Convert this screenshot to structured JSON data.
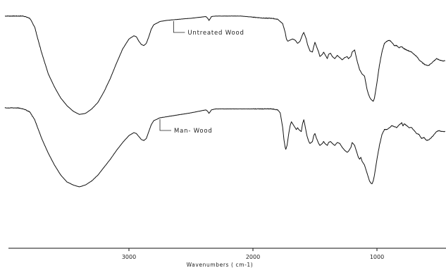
{
  "chart_data": {
    "type": "line",
    "xlabel": "Wavenumbers ( cm-1)",
    "ylabel": "",
    "xlim": [
      4000,
      450
    ],
    "x_reversed": true,
    "x_ticks": [
      3000,
      2000,
      1000
    ],
    "y_axis_visible": false,
    "grid": false,
    "legend": "none",
    "line_color": "#111111",
    "series": [
      {
        "name": "Untreated Wood",
        "points": [
          [
            4000,
            0.95
          ],
          [
            3900,
            0.95
          ],
          [
            3850,
            0.95
          ],
          [
            3800,
            0.93
          ],
          [
            3760,
            0.85
          ],
          [
            3730,
            0.72
          ],
          [
            3700,
            0.6
          ],
          [
            3650,
            0.42
          ],
          [
            3600,
            0.3
          ],
          [
            3550,
            0.2
          ],
          [
            3500,
            0.13
          ],
          [
            3450,
            0.08
          ],
          [
            3400,
            0.05
          ],
          [
            3350,
            0.06
          ],
          [
            3300,
            0.1
          ],
          [
            3250,
            0.16
          ],
          [
            3200,
            0.26
          ],
          [
            3150,
            0.38
          ],
          [
            3100,
            0.52
          ],
          [
            3050,
            0.65
          ],
          [
            3000,
            0.74
          ],
          [
            2960,
            0.77
          ],
          [
            2940,
            0.76
          ],
          [
            2920,
            0.72
          ],
          [
            2900,
            0.69
          ],
          [
            2880,
            0.68
          ],
          [
            2860,
            0.7
          ],
          [
            2840,
            0.76
          ],
          [
            2820,
            0.83
          ],
          [
            2800,
            0.87
          ],
          [
            2750,
            0.9
          ],
          [
            2700,
            0.91
          ],
          [
            2600,
            0.92
          ],
          [
            2500,
            0.93
          ],
          [
            2420,
            0.94
          ],
          [
            2380,
            0.945
          ],
          [
            2365,
            0.93
          ],
          [
            2355,
            0.91
          ],
          [
            2345,
            0.925
          ],
          [
            2335,
            0.945
          ],
          [
            2300,
            0.95
          ],
          [
            2200,
            0.95
          ],
          [
            2100,
            0.95
          ],
          [
            2000,
            0.94
          ],
          [
            1900,
            0.93
          ],
          [
            1850,
            0.93
          ],
          [
            1800,
            0.92
          ],
          [
            1760,
            0.88
          ],
          [
            1740,
            0.8
          ],
          [
            1730,
            0.74
          ],
          [
            1720,
            0.72
          ],
          [
            1700,
            0.73
          ],
          [
            1680,
            0.74
          ],
          [
            1660,
            0.73
          ],
          [
            1640,
            0.7
          ],
          [
            1620,
            0.72
          ],
          [
            1600,
            0.78
          ],
          [
            1590,
            0.8
          ],
          [
            1570,
            0.74
          ],
          [
            1560,
            0.69
          ],
          [
            1540,
            0.63
          ],
          [
            1520,
            0.62
          ],
          [
            1510,
            0.67
          ],
          [
            1500,
            0.71
          ],
          [
            1490,
            0.68
          ],
          [
            1470,
            0.62
          ],
          [
            1460,
            0.58
          ],
          [
            1440,
            0.6
          ],
          [
            1430,
            0.62
          ],
          [
            1420,
            0.6
          ],
          [
            1400,
            0.56
          ],
          [
            1390,
            0.6
          ],
          [
            1375,
            0.61
          ],
          [
            1360,
            0.58
          ],
          [
            1340,
            0.56
          ],
          [
            1320,
            0.59
          ],
          [
            1300,
            0.57
          ],
          [
            1280,
            0.55
          ],
          [
            1260,
            0.57
          ],
          [
            1240,
            0.58
          ],
          [
            1230,
            0.56
          ],
          [
            1210,
            0.58
          ],
          [
            1200,
            0.62
          ],
          [
            1180,
            0.64
          ],
          [
            1160,
            0.54
          ],
          [
            1150,
            0.5
          ],
          [
            1140,
            0.46
          ],
          [
            1130,
            0.44
          ],
          [
            1120,
            0.42
          ],
          [
            1100,
            0.4
          ],
          [
            1090,
            0.34
          ],
          [
            1080,
            0.28
          ],
          [
            1070,
            0.24
          ],
          [
            1060,
            0.21
          ],
          [
            1050,
            0.19
          ],
          [
            1040,
            0.18
          ],
          [
            1030,
            0.17
          ],
          [
            1020,
            0.2
          ],
          [
            1000,
            0.34
          ],
          [
            980,
            0.5
          ],
          [
            960,
            0.62
          ],
          [
            940,
            0.7
          ],
          [
            920,
            0.72
          ],
          [
            900,
            0.73
          ],
          [
            880,
            0.71
          ],
          [
            860,
            0.68
          ],
          [
            840,
            0.68
          ],
          [
            820,
            0.66
          ],
          [
            800,
            0.67
          ],
          [
            780,
            0.65
          ],
          [
            760,
            0.64
          ],
          [
            740,
            0.63
          ],
          [
            720,
            0.62
          ],
          [
            700,
            0.6
          ],
          [
            680,
            0.58
          ],
          [
            660,
            0.55
          ],
          [
            640,
            0.53
          ],
          [
            620,
            0.51
          ],
          [
            600,
            0.5
          ],
          [
            580,
            0.5
          ],
          [
            560,
            0.52
          ],
          [
            540,
            0.54
          ],
          [
            520,
            0.56
          ],
          [
            500,
            0.55
          ],
          [
            470,
            0.54
          ],
          [
            450,
            0.54
          ]
        ]
      },
      {
        "name": "Man- Wood",
        "points": [
          [
            4000,
            0.8
          ],
          [
            3900,
            0.8
          ],
          [
            3850,
            0.79
          ],
          [
            3800,
            0.76
          ],
          [
            3760,
            0.68
          ],
          [
            3730,
            0.58
          ],
          [
            3700,
            0.48
          ],
          [
            3650,
            0.34
          ],
          [
            3600,
            0.22
          ],
          [
            3550,
            0.12
          ],
          [
            3500,
            0.05
          ],
          [
            3450,
            0.02
          ],
          [
            3400,
            0.0
          ],
          [
            3350,
            0.02
          ],
          [
            3300,
            0.06
          ],
          [
            3250,
            0.12
          ],
          [
            3200,
            0.2
          ],
          [
            3150,
            0.28
          ],
          [
            3100,
            0.37
          ],
          [
            3050,
            0.45
          ],
          [
            3000,
            0.52
          ],
          [
            2960,
            0.55
          ],
          [
            2940,
            0.54
          ],
          [
            2920,
            0.51
          ],
          [
            2900,
            0.48
          ],
          [
            2880,
            0.47
          ],
          [
            2860,
            0.49
          ],
          [
            2840,
            0.56
          ],
          [
            2820,
            0.63
          ],
          [
            2800,
            0.67
          ],
          [
            2750,
            0.7
          ],
          [
            2700,
            0.71
          ],
          [
            2600,
            0.73
          ],
          [
            2500,
            0.75
          ],
          [
            2420,
            0.77
          ],
          [
            2380,
            0.78
          ],
          [
            2365,
            0.765
          ],
          [
            2355,
            0.745
          ],
          [
            2345,
            0.76
          ],
          [
            2335,
            0.78
          ],
          [
            2300,
            0.79
          ],
          [
            2200,
            0.79
          ],
          [
            2100,
            0.79
          ],
          [
            2000,
            0.79
          ],
          [
            1900,
            0.79
          ],
          [
            1850,
            0.79
          ],
          [
            1800,
            0.78
          ],
          [
            1780,
            0.75
          ],
          [
            1760,
            0.6
          ],
          [
            1750,
            0.48
          ],
          [
            1740,
            0.4
          ],
          [
            1735,
            0.38
          ],
          [
            1725,
            0.42
          ],
          [
            1710,
            0.55
          ],
          [
            1700,
            0.62
          ],
          [
            1690,
            0.66
          ],
          [
            1680,
            0.64
          ],
          [
            1660,
            0.6
          ],
          [
            1650,
            0.58
          ],
          [
            1640,
            0.6
          ],
          [
            1630,
            0.58
          ],
          [
            1610,
            0.56
          ],
          [
            1600,
            0.64
          ],
          [
            1590,
            0.68
          ],
          [
            1580,
            0.62
          ],
          [
            1565,
            0.52
          ],
          [
            1550,
            0.46
          ],
          [
            1540,
            0.44
          ],
          [
            1520,
            0.46
          ],
          [
            1510,
            0.52
          ],
          [
            1500,
            0.54
          ],
          [
            1490,
            0.5
          ],
          [
            1470,
            0.44
          ],
          [
            1460,
            0.42
          ],
          [
            1440,
            0.44
          ],
          [
            1430,
            0.46
          ],
          [
            1420,
            0.44
          ],
          [
            1400,
            0.42
          ],
          [
            1390,
            0.45
          ],
          [
            1375,
            0.46
          ],
          [
            1360,
            0.44
          ],
          [
            1340,
            0.42
          ],
          [
            1320,
            0.45
          ],
          [
            1300,
            0.44
          ],
          [
            1280,
            0.4
          ],
          [
            1260,
            0.37
          ],
          [
            1240,
            0.35
          ],
          [
            1230,
            0.36
          ],
          [
            1210,
            0.4
          ],
          [
            1200,
            0.45
          ],
          [
            1180,
            0.42
          ],
          [
            1160,
            0.34
          ],
          [
            1150,
            0.3
          ],
          [
            1140,
            0.28
          ],
          [
            1130,
            0.3
          ],
          [
            1120,
            0.26
          ],
          [
            1100,
            0.22
          ],
          [
            1090,
            0.18
          ],
          [
            1080,
            0.14
          ],
          [
            1070,
            0.1
          ],
          [
            1060,
            0.06
          ],
          [
            1050,
            0.04
          ],
          [
            1040,
            0.03
          ],
          [
            1030,
            0.06
          ],
          [
            1020,
            0.12
          ],
          [
            1000,
            0.28
          ],
          [
            980,
            0.42
          ],
          [
            960,
            0.53
          ],
          [
            940,
            0.58
          ],
          [
            920,
            0.58
          ],
          [
            900,
            0.6
          ],
          [
            880,
            0.62
          ],
          [
            860,
            0.61
          ],
          [
            840,
            0.6
          ],
          [
            820,
            0.63
          ],
          [
            800,
            0.65
          ],
          [
            790,
            0.62
          ],
          [
            780,
            0.64
          ],
          [
            760,
            0.62
          ],
          [
            740,
            0.6
          ],
          [
            720,
            0.6
          ],
          [
            700,
            0.57
          ],
          [
            680,
            0.54
          ],
          [
            660,
            0.53
          ],
          [
            640,
            0.49
          ],
          [
            620,
            0.5
          ],
          [
            600,
            0.47
          ],
          [
            580,
            0.48
          ],
          [
            560,
            0.5
          ],
          [
            540,
            0.53
          ],
          [
            520,
            0.56
          ],
          [
            500,
            0.57
          ],
          [
            470,
            0.56
          ],
          [
            450,
            0.56
          ]
        ]
      }
    ],
    "annotations": [
      {
        "text": "Untreated Wood",
        "series": 0,
        "anchor_x": 2640
      },
      {
        "text": "Man- Wood",
        "series": 1,
        "anchor_x": 2750
      }
    ]
  }
}
